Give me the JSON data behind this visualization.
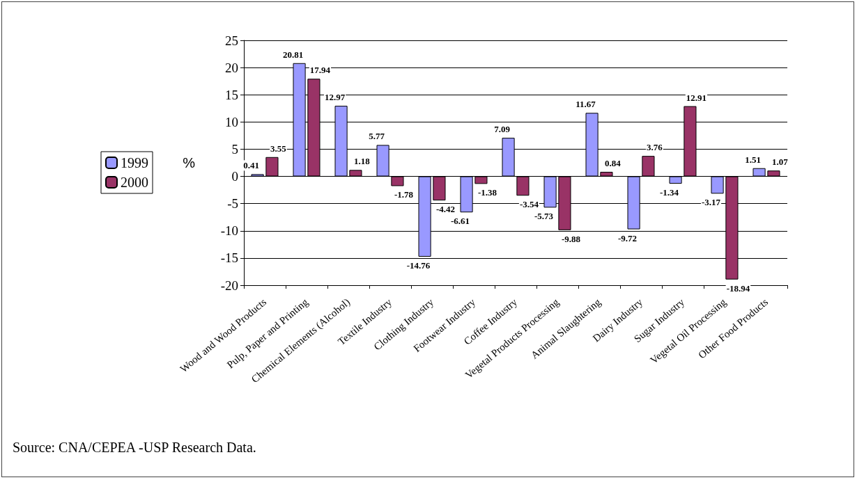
{
  "chart_data": {
    "type": "bar",
    "categories": [
      "Wood and Wood Products",
      "Pulp, Paper and Printing",
      "Chemical Elements (Alcohol)",
      "Textile Industry",
      "Clothing Industry",
      "Footwear Industry",
      "Coffee Industry",
      "Vegetal Products Processing",
      "Animal Slaughtering",
      "Dairy Industry",
      "Sugar Industry",
      "Vegetal Oil Processing",
      "Other Food Products"
    ],
    "series": [
      {
        "name": "1999",
        "color": "#9999ff",
        "values": [
          0.41,
          20.81,
          12.97,
          5.77,
          -14.76,
          -6.61,
          7.09,
          -5.73,
          11.67,
          -9.72,
          -1.34,
          -3.17,
          1.51
        ]
      },
      {
        "name": "2000",
        "color": "#993366",
        "values": [
          3.55,
          17.94,
          1.18,
          -1.78,
          -4.42,
          -1.38,
          -3.54,
          -9.88,
          0.84,
          3.76,
          12.91,
          -18.94,
          1.07
        ]
      }
    ],
    "ylabel": "%",
    "ylim": [
      -20,
      25
    ],
    "yticks": [
      -20,
      -15,
      -10,
      -5,
      0,
      5,
      10,
      15,
      20,
      25
    ],
    "grid": "y",
    "legend": "left",
    "data_labels": true,
    "annotations": [
      "Source: CNA/CEPEA -USP Research Data."
    ]
  }
}
